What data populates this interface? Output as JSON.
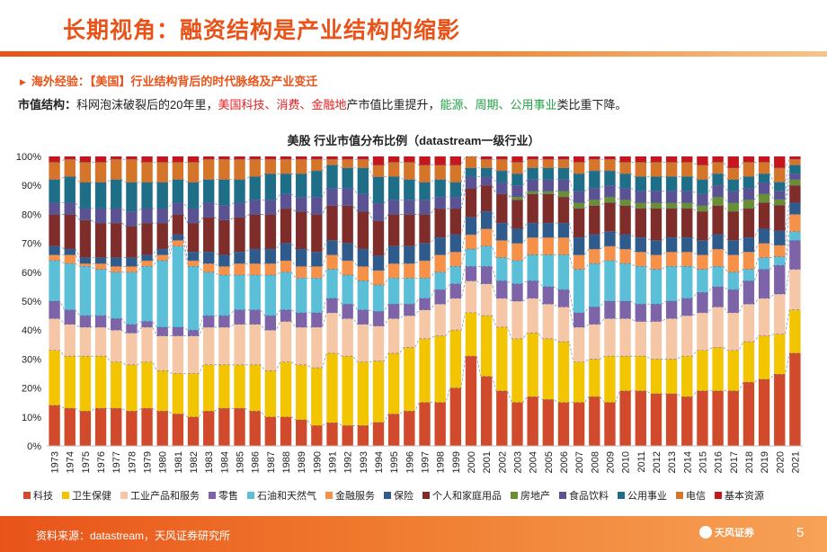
{
  "header": {
    "title": "长期视角：融资结构是产业结构的缩影",
    "subtitle": "海外经验：【美国】行业结构背后的时代脉络及产业变迁",
    "desc_label": "市值结构：",
    "desc_p1": "科网泡沫破裂后的20年里，",
    "desc_rise": "美国科技、消费、金融地",
    "desc_p2": "产市值比重提升，",
    "desc_fall": "能源、周期、公用事业",
    "desc_p3": "类比重下降。"
  },
  "chart_data": {
    "type": "bar",
    "stacked": true,
    "title": "美股 行业市值分布比例（datastream一级行业）",
    "ylabel": "",
    "xlabel": "",
    "ylim": [
      0,
      100
    ],
    "yticks": [
      "0%",
      "10%",
      "20%",
      "30%",
      "40%",
      "50%",
      "60%",
      "70%",
      "80%",
      "90%",
      "100%"
    ],
    "categories": [
      "1973",
      "1974",
      "1975",
      "1976",
      "1977",
      "1978",
      "1979",
      "1980",
      "1981",
      "1982",
      "1983",
      "1984",
      "1985",
      "1986",
      "1987",
      "1988",
      "1989",
      "1990",
      "1991",
      "1992",
      "1993",
      "1994",
      "1995",
      "1996",
      "1997",
      "1998",
      "1999",
      "2000",
      "2001",
      "2002",
      "2003",
      "2004",
      "2005",
      "2006",
      "2007",
      "2008",
      "2009",
      "2010",
      "2011",
      "2012",
      "2013",
      "2014",
      "2015",
      "2016",
      "2017",
      "2018",
      "2019",
      "2020",
      "2021"
    ],
    "series": [
      {
        "name": "科技",
        "color": "#d24a2c",
        "values": [
          14,
          13,
          12,
          13,
          13,
          12,
          13,
          12,
          11,
          10,
          12,
          13,
          13,
          12,
          10,
          10,
          9,
          7,
          8,
          7,
          7,
          8,
          11,
          12,
          15,
          15,
          20,
          31,
          24,
          19,
          15,
          17,
          16,
          15,
          15,
          17,
          15,
          19,
          19,
          18,
          18,
          17,
          19,
          19,
          19,
          22,
          23,
          25,
          32
        ]
      },
      {
        "name": "卫生保健",
        "color": "#f3c400",
        "values": [
          19,
          18,
          19,
          18,
          16,
          16,
          16,
          14,
          14,
          15,
          16,
          15,
          15,
          16,
          16,
          19,
          19,
          20,
          24,
          24,
          22,
          21,
          21,
          22,
          22,
          23,
          20,
          15,
          21,
          22,
          22,
          22,
          21,
          21,
          14,
          13,
          16,
          12,
          12,
          12,
          12,
          14,
          14,
          15,
          14,
          14,
          15,
          14,
          15
        ]
      },
      {
        "name": "工业产品和服务",
        "color": "#f6c7a6",
        "values": [
          11,
          11,
          10,
          10,
          11,
          11,
          12,
          12,
          13,
          13,
          13,
          13,
          14,
          14,
          14,
          14,
          13,
          14,
          14,
          13,
          13,
          12,
          12,
          11,
          10,
          11,
          11,
          11,
          11,
          10,
          13,
          12,
          12,
          12,
          12,
          12,
          13,
          13,
          12,
          13,
          14,
          14,
          13,
          14,
          13,
          13,
          13,
          14,
          14
        ]
      },
      {
        "name": "零售",
        "color": "#7d63a8",
        "values": [
          6,
          5,
          4,
          4,
          4,
          3,
          2,
          3,
          3,
          2,
          4,
          4,
          5,
          5,
          5,
          4,
          5,
          5,
          5,
          5,
          5,
          5,
          5,
          4,
          4,
          5,
          5,
          5,
          6,
          6,
          6,
          6,
          6,
          6,
          5,
          6,
          6,
          6,
          6,
          6,
          6,
          6,
          7,
          7,
          8,
          8,
          10,
          10,
          10
        ]
      },
      {
        "name": "石油和天然气",
        "color": "#5bc0d7",
        "values": [
          14,
          16,
          17,
          16,
          16,
          18,
          19,
          23,
          28,
          22,
          15,
          14,
          12,
          12,
          14,
          13,
          12,
          12,
          10,
          10,
          10,
          9,
          9,
          9,
          7,
          6,
          6,
          6,
          7,
          8,
          8,
          9,
          11,
          12,
          15,
          15,
          14,
          13,
          13,
          12,
          12,
          11,
          8,
          7,
          6,
          4,
          4,
          3,
          3
        ]
      },
      {
        "name": "金融服务",
        "color": "#f6914a",
        "values": [
          2,
          3,
          1,
          2,
          2,
          2,
          2,
          2,
          2,
          2,
          3,
          3,
          4,
          4,
          4,
          4,
          4,
          4,
          5,
          5,
          5,
          5,
          5,
          5,
          6,
          6,
          5,
          5,
          6,
          6,
          6,
          6,
          6,
          6,
          5,
          5,
          5,
          5,
          5,
          5,
          5,
          5,
          5,
          6,
          6,
          6,
          5,
          4,
          6
        ]
      },
      {
        "name": "保险",
        "color": "#2e5b8b",
        "values": [
          3,
          2,
          2,
          2,
          3,
          3,
          2,
          2,
          2,
          3,
          4,
          4,
          4,
          5,
          5,
          6,
          6,
          5,
          5,
          6,
          6,
          5,
          6,
          6,
          6,
          6,
          6,
          6,
          6,
          6,
          5,
          5,
          5,
          5,
          6,
          5,
          5,
          5,
          5,
          5,
          5,
          5,
          5,
          5,
          5,
          5,
          5,
          5,
          4
        ]
      },
      {
        "name": "个人和家庭用品",
        "color": "#7e2d2b",
        "values": [
          11,
          12,
          13,
          12,
          12,
          11,
          11,
          9,
          7,
          10,
          12,
          12,
          12,
          12,
          12,
          12,
          13,
          13,
          12,
          13,
          13,
          12,
          11,
          11,
          10,
          10,
          9,
          10,
          9,
          10,
          10,
          10,
          10,
          9,
          10,
          10,
          10,
          10,
          10,
          11,
          10,
          10,
          10,
          10,
          10,
          10,
          9,
          9,
          6
        ]
      },
      {
        "name": "房地产",
        "color": "#6a8e33",
        "values": [
          0,
          0,
          0,
          0,
          0,
          0,
          0,
          0,
          0,
          0,
          0,
          0,
          0,
          0,
          0,
          0,
          0,
          0,
          0,
          0,
          0,
          0,
          0,
          0,
          0,
          0,
          0,
          0,
          0,
          0,
          1,
          1,
          1,
          2,
          2,
          2,
          2,
          2,
          2,
          2,
          2,
          2,
          2,
          3,
          3,
          3,
          3,
          2,
          2
        ]
      },
      {
        "name": "食品饮料",
        "color": "#5b5293",
        "values": [
          4,
          4,
          4,
          5,
          5,
          5,
          5,
          5,
          4,
          5,
          5,
          5,
          5,
          5,
          5,
          5,
          5,
          6,
          6,
          6,
          6,
          6,
          5,
          5,
          5,
          4,
          4,
          4,
          3,
          4,
          4,
          4,
          4,
          4,
          4,
          4,
          4,
          4,
          4,
          4,
          4,
          4,
          4,
          4,
          4,
          4,
          4,
          3,
          2
        ]
      },
      {
        "name": "公用事业",
        "color": "#1f6e87",
        "values": [
          8,
          9,
          9,
          9,
          10,
          10,
          9,
          9,
          8,
          9,
          8,
          9,
          8,
          8,
          9,
          7,
          8,
          9,
          8,
          7,
          9,
          9,
          8,
          7,
          6,
          6,
          5,
          3,
          3,
          4,
          4,
          4,
          4,
          4,
          6,
          6,
          5,
          5,
          5,
          5,
          5,
          5,
          5,
          4,
          4,
          4,
          3,
          3,
          3
        ]
      },
      {
        "name": "电信",
        "color": "#d5752a",
        "values": [
          6,
          6,
          7,
          7,
          7,
          8,
          7,
          7,
          6,
          7,
          7,
          7,
          7,
          6,
          5,
          5,
          5,
          4,
          2,
          3,
          3,
          4,
          5,
          6,
          6,
          5,
          6,
          4,
          3,
          4,
          4,
          3,
          3,
          3,
          4,
          4,
          4,
          4,
          5,
          5,
          5,
          5,
          5,
          4,
          4,
          5,
          4,
          5,
          2
        ]
      },
      {
        "name": "基本资源",
        "color": "#c4161c",
        "values": [
          2,
          1,
          2,
          2,
          1,
          1,
          2,
          2,
          2,
          2,
          1,
          1,
          1,
          1,
          1,
          1,
          1,
          1,
          1,
          1,
          1,
          3,
          2,
          2,
          3,
          3,
          3,
          0,
          1,
          1,
          2,
          1,
          1,
          1,
          2,
          1,
          1,
          2,
          2,
          2,
          2,
          2,
          3,
          2,
          4,
          2,
          2,
          4,
          1
        ]
      }
    ]
  },
  "footer": {
    "source": "资料来源：datastream，天风证券研究所",
    "logo_text": "天风证券",
    "page_number": "5"
  }
}
